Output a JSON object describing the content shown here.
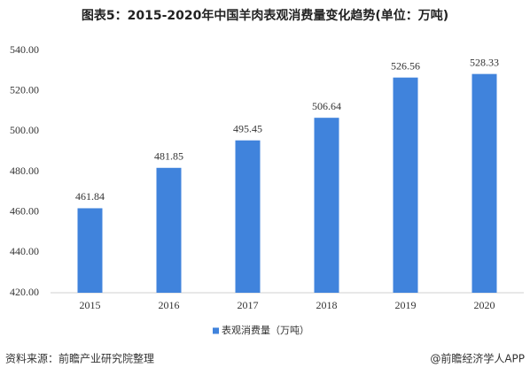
{
  "chart_data": {
    "type": "bar",
    "title": "图表5：2015-2020年中国羊肉表观消费量变化趋势(单位：万吨)",
    "categories": [
      "2015",
      "2016",
      "2017",
      "2018",
      "2019",
      "2020"
    ],
    "series": [
      {
        "name": "表观消费量（万吨）",
        "color": "#4083dc",
        "values": [
          461.84,
          481.85,
          495.45,
          506.64,
          526.56,
          528.33
        ]
      }
    ],
    "ylim": [
      420,
      540
    ],
    "yticks": [
      {
        "value": 420,
        "label": "420.00"
      },
      {
        "value": 440,
        "label": "440.00"
      },
      {
        "value": 460,
        "label": "460.00"
      },
      {
        "value": 480,
        "label": "480.00"
      },
      {
        "value": 500,
        "label": "500.00"
      },
      {
        "value": 520,
        "label": "520.00"
      },
      {
        "value": 540,
        "label": "540.00"
      }
    ],
    "grid": false,
    "legend": "bottom",
    "source": "资料来源：前瞻产业研究院整理",
    "credit": "@前瞻经济学人APP"
  }
}
